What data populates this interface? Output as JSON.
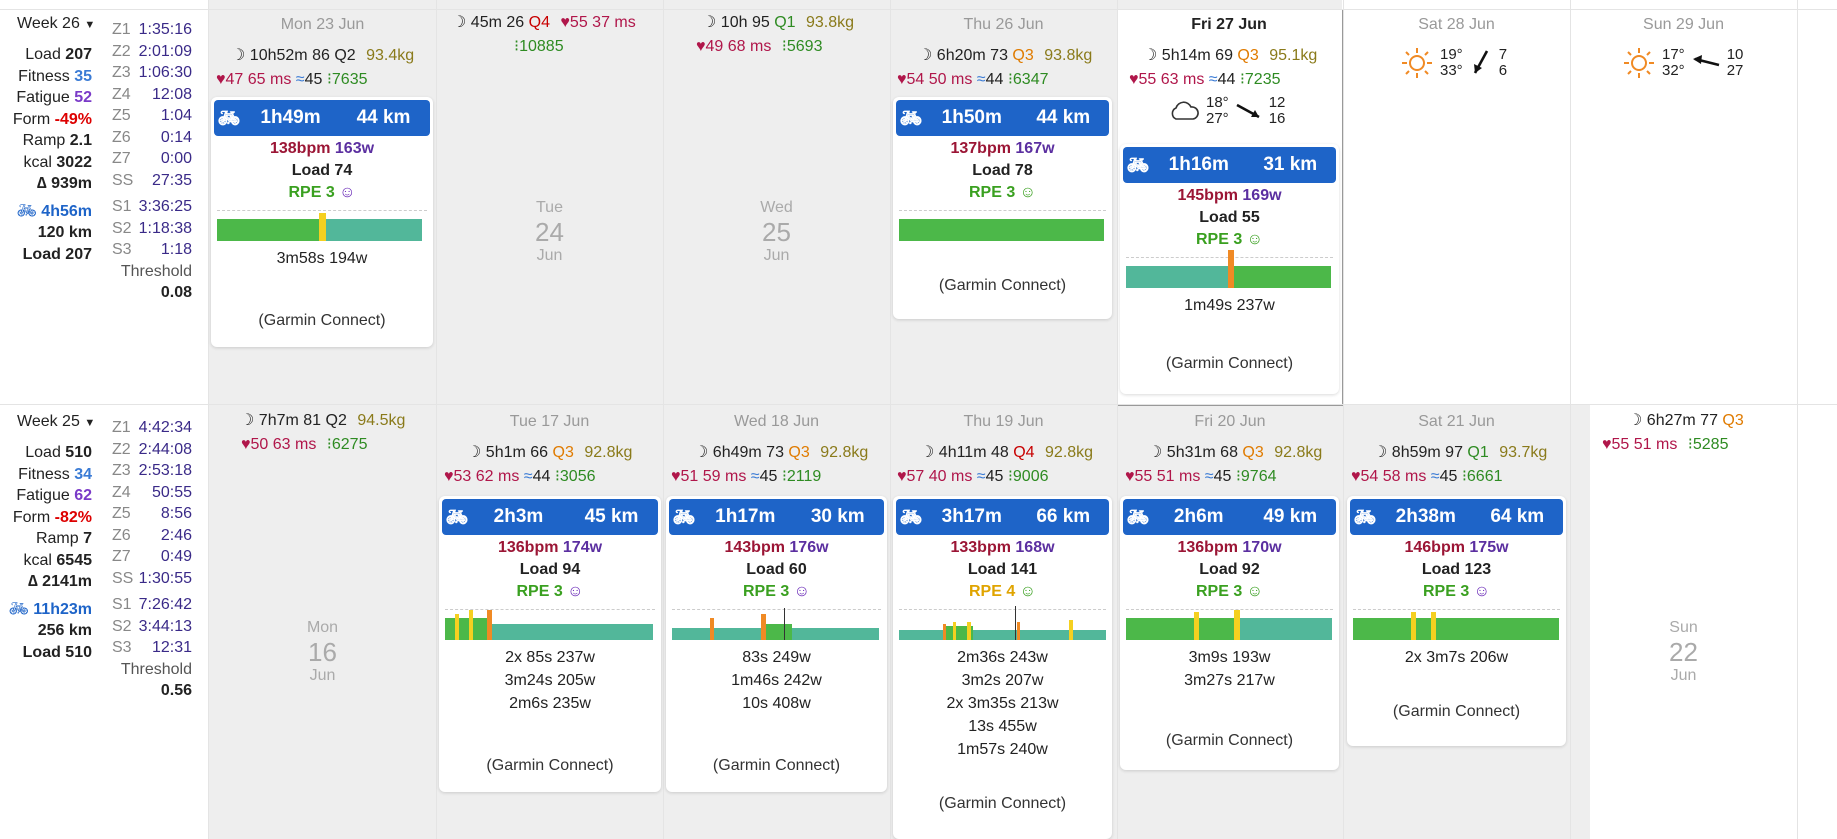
{
  "colors": {
    "header_blue": "#1e64c8",
    "bpm": "#9b1535",
    "watt": "#5b2fa0",
    "rpe3": "#3aa020",
    "rpe4": "#e0a400",
    "zone_green": "#4cb849",
    "zone_teal": "#52b79a",
    "spike_yellow": "#f5d020",
    "spike_orange": "#f08a24"
  },
  "week26": {
    "title": "Week 26",
    "stats": {
      "load": "Load",
      "load_v": "207",
      "fitness": "Fitness",
      "fitness_v": "35",
      "fatigue": "Fatigue",
      "fatigue_v": "52",
      "form": "Form",
      "form_v": "-49%",
      "ramp": "Ramp",
      "ramp_v": "2.1",
      "kcal": "kcal",
      "kcal_v": "3022",
      "elev": "∆ 939m",
      "ride_time": "4h56m",
      "ride_dist": "120 km",
      "ride_load": "Load 207"
    },
    "zones": [
      [
        "Z1",
        "1:35:16"
      ],
      [
        "Z2",
        "2:01:09"
      ],
      [
        "Z3",
        "1:06:30"
      ],
      [
        "Z4",
        "12:08"
      ],
      [
        "Z5",
        "1:04"
      ],
      [
        "Z6",
        "0:14"
      ],
      [
        "Z7",
        "0:00"
      ],
      [
        "SS",
        "27:35"
      ]
    ],
    "s": [
      [
        "S1",
        "3:36:25"
      ],
      [
        "S2",
        "1:18:38"
      ],
      [
        "S3",
        "1:18"
      ]
    ],
    "threshold": "Threshold",
    "threshold_v": "0.08"
  },
  "week25": {
    "title": "Week 25",
    "stats": {
      "load": "Load",
      "load_v": "510",
      "fitness": "Fitness",
      "fitness_v": "34",
      "fatigue": "Fatigue",
      "fatigue_v": "62",
      "form": "Form",
      "form_v": "-82%",
      "ramp": "Ramp",
      "ramp_v": "7",
      "kcal": "kcal",
      "kcal_v": "6545",
      "elev": "∆ 2141m",
      "ride_time": "11h23m",
      "ride_dist": "256 km",
      "ride_load": "Load 510"
    },
    "zones": [
      [
        "Z1",
        "4:42:34"
      ],
      [
        "Z2",
        "2:44:08"
      ],
      [
        "Z3",
        "2:53:18"
      ],
      [
        "Z4",
        "50:55"
      ],
      [
        "Z5",
        "8:56"
      ],
      [
        "Z6",
        "2:46"
      ],
      [
        "Z7",
        "0:49"
      ],
      [
        "SS",
        "1:30:55"
      ]
    ],
    "s": [
      [
        "S1",
        "7:26:42"
      ],
      [
        "S2",
        "3:44:13"
      ],
      [
        "S3",
        "12:31"
      ]
    ],
    "threshold": "Threshold",
    "threshold_v": "0.56"
  },
  "days": {
    "mon23": {
      "head": "Mon 23 Jun",
      "sleep": "10h52m",
      "score": "86",
      "q": "Q2",
      "weight": "93.4kg",
      "hr": "47",
      "hrv": "65 ms",
      "temp": "45",
      "steps": "7635",
      "card": {
        "dur": "1h49m",
        "dist": "44 km",
        "bpm": "138bpm",
        "watt": "163w",
        "load": "Load 74",
        "rpe": "RPE 3",
        "intervals": [
          "3m58s 194w"
        ],
        "source": "(Garmin Connect)"
      }
    },
    "tue24": {
      "sleep": "45m",
      "score": "26",
      "q": "Q4",
      "hr": "55",
      "hrv": "37 ms",
      "steps": "10885",
      "dname": "Tue",
      "dnum": "24",
      "dmon": "Jun"
    },
    "wed25": {
      "sleep": "10h",
      "score": "95",
      "q": "Q1",
      "weight": "93.8kg",
      "hr": "49",
      "hrv": "68 ms",
      "steps": "5693",
      "dname": "Wed",
      "dnum": "25",
      "dmon": "Jun"
    },
    "thu26": {
      "head": "Thu 26 Jun",
      "sleep": "6h20m",
      "score": "73",
      "q": "Q3",
      "weight": "93.8kg",
      "hr": "54",
      "hrv": "50 ms",
      "temp": "44",
      "steps": "6347",
      "card": {
        "dur": "1h50m",
        "dist": "44 km",
        "bpm": "137bpm",
        "watt": "167w",
        "load": "Load 78",
        "rpe": "RPE 3",
        "intervals": [],
        "source": "(Garmin Connect)"
      }
    },
    "fri27": {
      "head": "Fri 27 Jun",
      "sleep": "5h14m",
      "score": "69",
      "q": "Q3",
      "weight": "95.1kg",
      "hr": "55",
      "hrv": "63 ms",
      "temp": "44",
      "steps": "7235",
      "wx": {
        "lo": "18°",
        "hi": "27°",
        "w1": "12",
        "w2": "16"
      },
      "card": {
        "dur": "1h16m",
        "dist": "31 km",
        "bpm": "145bpm",
        "watt": "169w",
        "load": "Load 55",
        "rpe": "RPE 3",
        "intervals": [
          "1m49s 237w"
        ],
        "source": "(Garmin Connect)"
      }
    },
    "sat28": {
      "head": "Sat 28 Jun",
      "wx": {
        "lo": "19°",
        "hi": "33°",
        "w1": "7",
        "w2": "6"
      }
    },
    "sun29": {
      "head": "Sun 29 Jun",
      "wx": {
        "lo": "17°",
        "hi": "32°",
        "w1": "10",
        "w2": "27"
      }
    },
    "mon16": {
      "sleep": "7h7m",
      "score": "81",
      "q": "Q2",
      "weight": "94.5kg",
      "hr": "50",
      "hrv": "63 ms",
      "steps": "6275",
      "dname": "Mon",
      "dnum": "16",
      "dmon": "Jun"
    },
    "tue17": {
      "head": "Tue 17 Jun",
      "sleep": "5h1m",
      "score": "66",
      "q": "Q3",
      "weight": "92.8kg",
      "hr": "53",
      "hrv": "62 ms",
      "temp": "44",
      "steps": "3056",
      "card": {
        "dur": "2h3m",
        "dist": "45 km",
        "bpm": "136bpm",
        "watt": "174w",
        "load": "Load 94",
        "rpe": "RPE 3",
        "intervals": [
          "2x      85s 237w",
          "3m24s 205w",
          "2m6s 235w"
        ],
        "source": "(Garmin Connect)"
      }
    },
    "wed18": {
      "head": "Wed 18 Jun",
      "sleep": "6h49m",
      "score": "73",
      "q": "Q3",
      "weight": "92.8kg",
      "hr": "51",
      "hrv": "59 ms",
      "temp": "45",
      "steps": "2119",
      "card": {
        "dur": "1h17m",
        "dist": "30 km",
        "bpm": "143bpm",
        "watt": "176w",
        "load": "Load 60",
        "rpe": "RPE 3",
        "intervals": [
          "83s 249w",
          "1m46s 242w",
          "10s 408w"
        ],
        "source": "(Garmin Connect)"
      }
    },
    "thu19": {
      "head": "Thu 19 Jun",
      "sleep": "4h11m",
      "score": "48",
      "q": "Q4",
      "weight": "92.8kg",
      "hr": "57",
      "hrv": "40 ms",
      "temp": "45",
      "steps": "9006",
      "card": {
        "dur": "3h17m",
        "dist": "66 km",
        "bpm": "133bpm",
        "watt": "168w",
        "load": "Load 141",
        "rpe": "RPE 4",
        "intervals": [
          "2m36s 243w",
          "3m2s 207w",
          "2x 3m35s 213w",
          "13s 455w",
          "1m57s 240w"
        ],
        "source": "(Garmin Connect)"
      }
    },
    "fri20": {
      "head": "Fri 20 Jun",
      "sleep": "5h31m",
      "score": "68",
      "q": "Q3",
      "weight": "92.8kg",
      "hr": "55",
      "hrv": "51 ms",
      "temp": "45",
      "steps": "9764",
      "card": {
        "dur": "2h6m",
        "dist": "49 km",
        "bpm": "136bpm",
        "watt": "170w",
        "load": "Load 92",
        "rpe": "RPE 3",
        "intervals": [
          "3m9s 193w",
          "3m27s 217w"
        ],
        "source": "(Garmin Connect)"
      }
    },
    "sat21": {
      "head": "Sat 21 Jun",
      "sleep": "8h59m",
      "score": "97",
      "q": "Q1",
      "weight": "93.7kg",
      "hr": "54",
      "hrv": "58 ms",
      "temp": "45",
      "steps": "6661",
      "card": {
        "dur": "2h38m",
        "dist": "64 km",
        "bpm": "146bpm",
        "watt": "175w",
        "load": "Load 123",
        "rpe": "RPE 3",
        "intervals": [
          "2x 3m7s 206w"
        ],
        "source": "(Garmin Connect)"
      }
    },
    "sun22": {
      "sleep": "6h27m",
      "score": "77",
      "q": "Q3",
      "hr": "55",
      "hrv": "51 ms",
      "steps": "5285",
      "dname": "Sun",
      "dnum": "22",
      "dmon": "Jun"
    }
  }
}
